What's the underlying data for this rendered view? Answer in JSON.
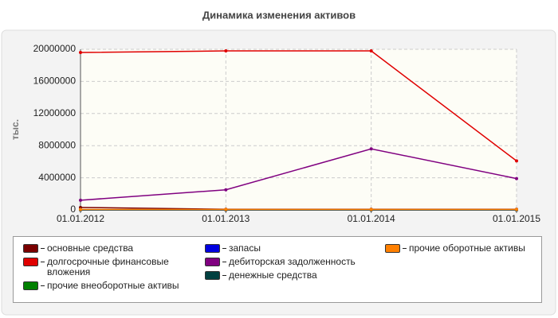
{
  "chart_data": {
    "type": "line",
    "title": "Динамика изменения активов",
    "y_label": "тыс.",
    "categories": [
      "01.01.2012",
      "01.01.2013",
      "01.01.2014",
      "01.01.2015"
    ],
    "ylim": [
      0,
      20000000
    ],
    "yticks": [
      0,
      4000000,
      8000000,
      12000000,
      16000000,
      20000000
    ],
    "grid": true,
    "series": [
      {
        "name": "основные средства",
        "color": "#7a0000",
        "values": [
          300000,
          80000,
          80000,
          80000
        ]
      },
      {
        "name": "долгосрочные финансовые вложения",
        "color": "#e00000",
        "values": [
          19600000,
          19800000,
          19800000,
          6100000
        ]
      },
      {
        "name": "прочие внеоборотные активы",
        "color": "#008000",
        "values": [
          0,
          0,
          0,
          0
        ]
      },
      {
        "name": "запасы",
        "color": "#0000e0",
        "values": [
          0,
          0,
          0,
          0
        ]
      },
      {
        "name": "дебиторская задолженность",
        "color": "#800080",
        "values": [
          1200000,
          2500000,
          7600000,
          3900000
        ]
      },
      {
        "name": "денежные средства",
        "color": "#004040",
        "values": [
          0,
          0,
          0,
          0
        ]
      },
      {
        "name": "прочие оборотные активы",
        "color": "#ff8000",
        "values": [
          50000,
          50000,
          50000,
          50000
        ]
      }
    ]
  }
}
